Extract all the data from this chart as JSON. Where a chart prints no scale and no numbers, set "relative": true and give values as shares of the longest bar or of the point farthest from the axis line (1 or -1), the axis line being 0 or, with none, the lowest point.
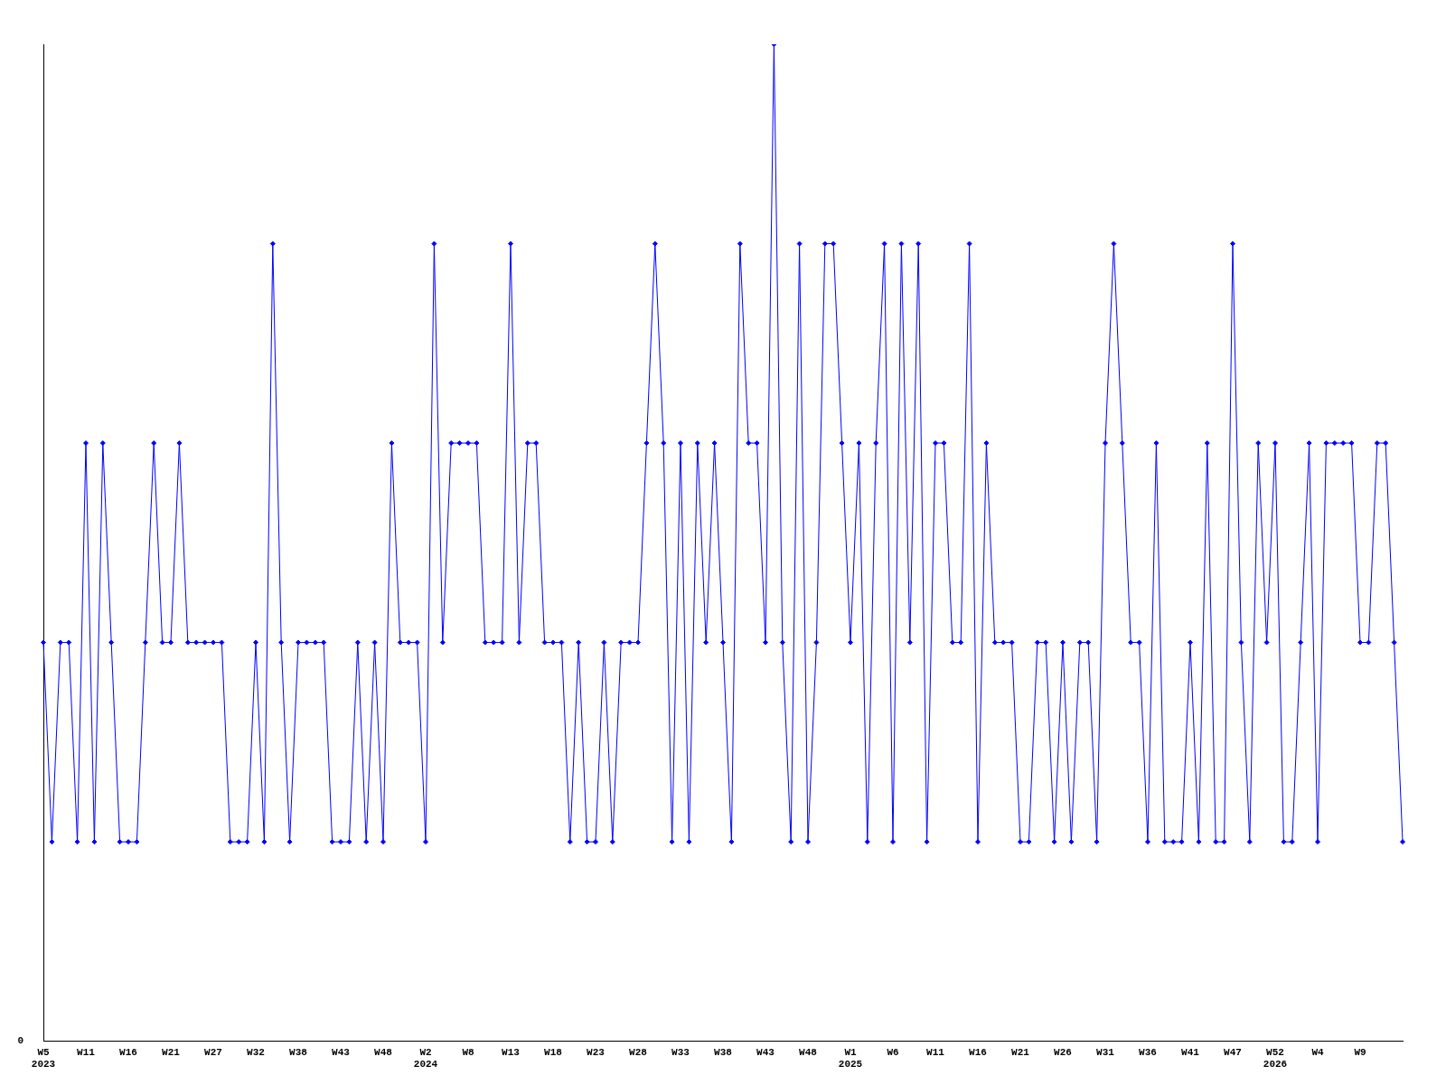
{
  "chart_data": {
    "type": "line",
    "relative": true,
    "marker": "diamond",
    "grid": false,
    "legend": false,
    "annotations": [
      "0"
    ],
    "categories": [
      "W5\n2023",
      null,
      null,
      null,
      null,
      "W11",
      null,
      null,
      null,
      null,
      "W16",
      null,
      null,
      null,
      null,
      "W21",
      null,
      null,
      null,
      null,
      "W27",
      null,
      null,
      null,
      null,
      "W32",
      null,
      null,
      null,
      null,
      "W38",
      null,
      null,
      null,
      null,
      "W43",
      null,
      null,
      null,
      null,
      "W48",
      null,
      null,
      null,
      null,
      "W2\n2024",
      null,
      null,
      null,
      null,
      "W8",
      null,
      null,
      null,
      null,
      "W13",
      null,
      null,
      null,
      null,
      "W18",
      null,
      null,
      null,
      null,
      "W23",
      null,
      null,
      null,
      null,
      "W28",
      null,
      null,
      null,
      null,
      "W33",
      null,
      null,
      null,
      null,
      "W38",
      null,
      null,
      null,
      null,
      "W43",
      null,
      null,
      null,
      null,
      "W48",
      null,
      null,
      null,
      null,
      "W1\n2025",
      null,
      null,
      null,
      null,
      "W6",
      null,
      null,
      null,
      null,
      "W11",
      null,
      null,
      null,
      null,
      "W16",
      null,
      null,
      null,
      null,
      "W21",
      null,
      null,
      null,
      null,
      "W26",
      null,
      null,
      null,
      null,
      "W31",
      null,
      null,
      null,
      null,
      "W36",
      null,
      null,
      null,
      null,
      "W41",
      null,
      null,
      null,
      null,
      "W47",
      null,
      null,
      null,
      null,
      "W52\n2026",
      null,
      null,
      null,
      null,
      "W4",
      null,
      null,
      null,
      null,
      "W9",
      null,
      null,
      null,
      null,
      null
    ],
    "series": [
      {
        "color": "#0000ff",
        "values": [
          0.4,
          0.2,
          0.4,
          0.4,
          0.2,
          0.6,
          0.2,
          0.6,
          0.4,
          0.2,
          0.2,
          0.2,
          0.4,
          0.6,
          0.4,
          0.4,
          0.6,
          0.4,
          0.4,
          0.4,
          0.4,
          0.4,
          0.2,
          0.2,
          0.2,
          0.4,
          0.2,
          0.8,
          0.4,
          0.2,
          0.4,
          0.4,
          0.4,
          0.4,
          0.2,
          0.2,
          0.2,
          0.4,
          0.2,
          0.4,
          0.2,
          0.6,
          0.4,
          0.4,
          0.4,
          0.2,
          0.8,
          0.4,
          0.6,
          0.6,
          0.6,
          0.6,
          0.4,
          0.4,
          0.4,
          0.8,
          0.4,
          0.6,
          0.6,
          0.4,
          0.4,
          0.4,
          0.2,
          0.4,
          0.2,
          0.2,
          0.4,
          0.2,
          0.4,
          0.4,
          0.4,
          0.6,
          0.8,
          0.6,
          0.2,
          0.6,
          0.2,
          0.6,
          0.4,
          0.6,
          0.4,
          0.2,
          0.8,
          0.6,
          0.6,
          0.4,
          1,
          0.4,
          0.2,
          0.8,
          0.2,
          0.4,
          0.8,
          0.8,
          0.6,
          0.4,
          0.6,
          0.2,
          0.6,
          0.8,
          0.2,
          0.8,
          0.4,
          0.8,
          0.2,
          0.6,
          0.6,
          0.4,
          0.4,
          0.8,
          0.2,
          0.6,
          0.4,
          0.4,
          0.4,
          0.2,
          0.2,
          0.4,
          0.4,
          0.2,
          0.4,
          0.2,
          0.4,
          0.4,
          0.2,
          0.6,
          0.8,
          0.6,
          0.4,
          0.4,
          0.2,
          0.6,
          0.2,
          0.2,
          0.2,
          0.4,
          0.2,
          0.6,
          0.2,
          0.2,
          0.8,
          0.4,
          0.2,
          0.6,
          0.4,
          0.6,
          0.2,
          0.2,
          0.4,
          0.6,
          0.2,
          0.6,
          0.6,
          0.6,
          0.6,
          0.4,
          0.4,
          0.6,
          0.6,
          0.4,
          0.2
        ]
      }
    ]
  }
}
